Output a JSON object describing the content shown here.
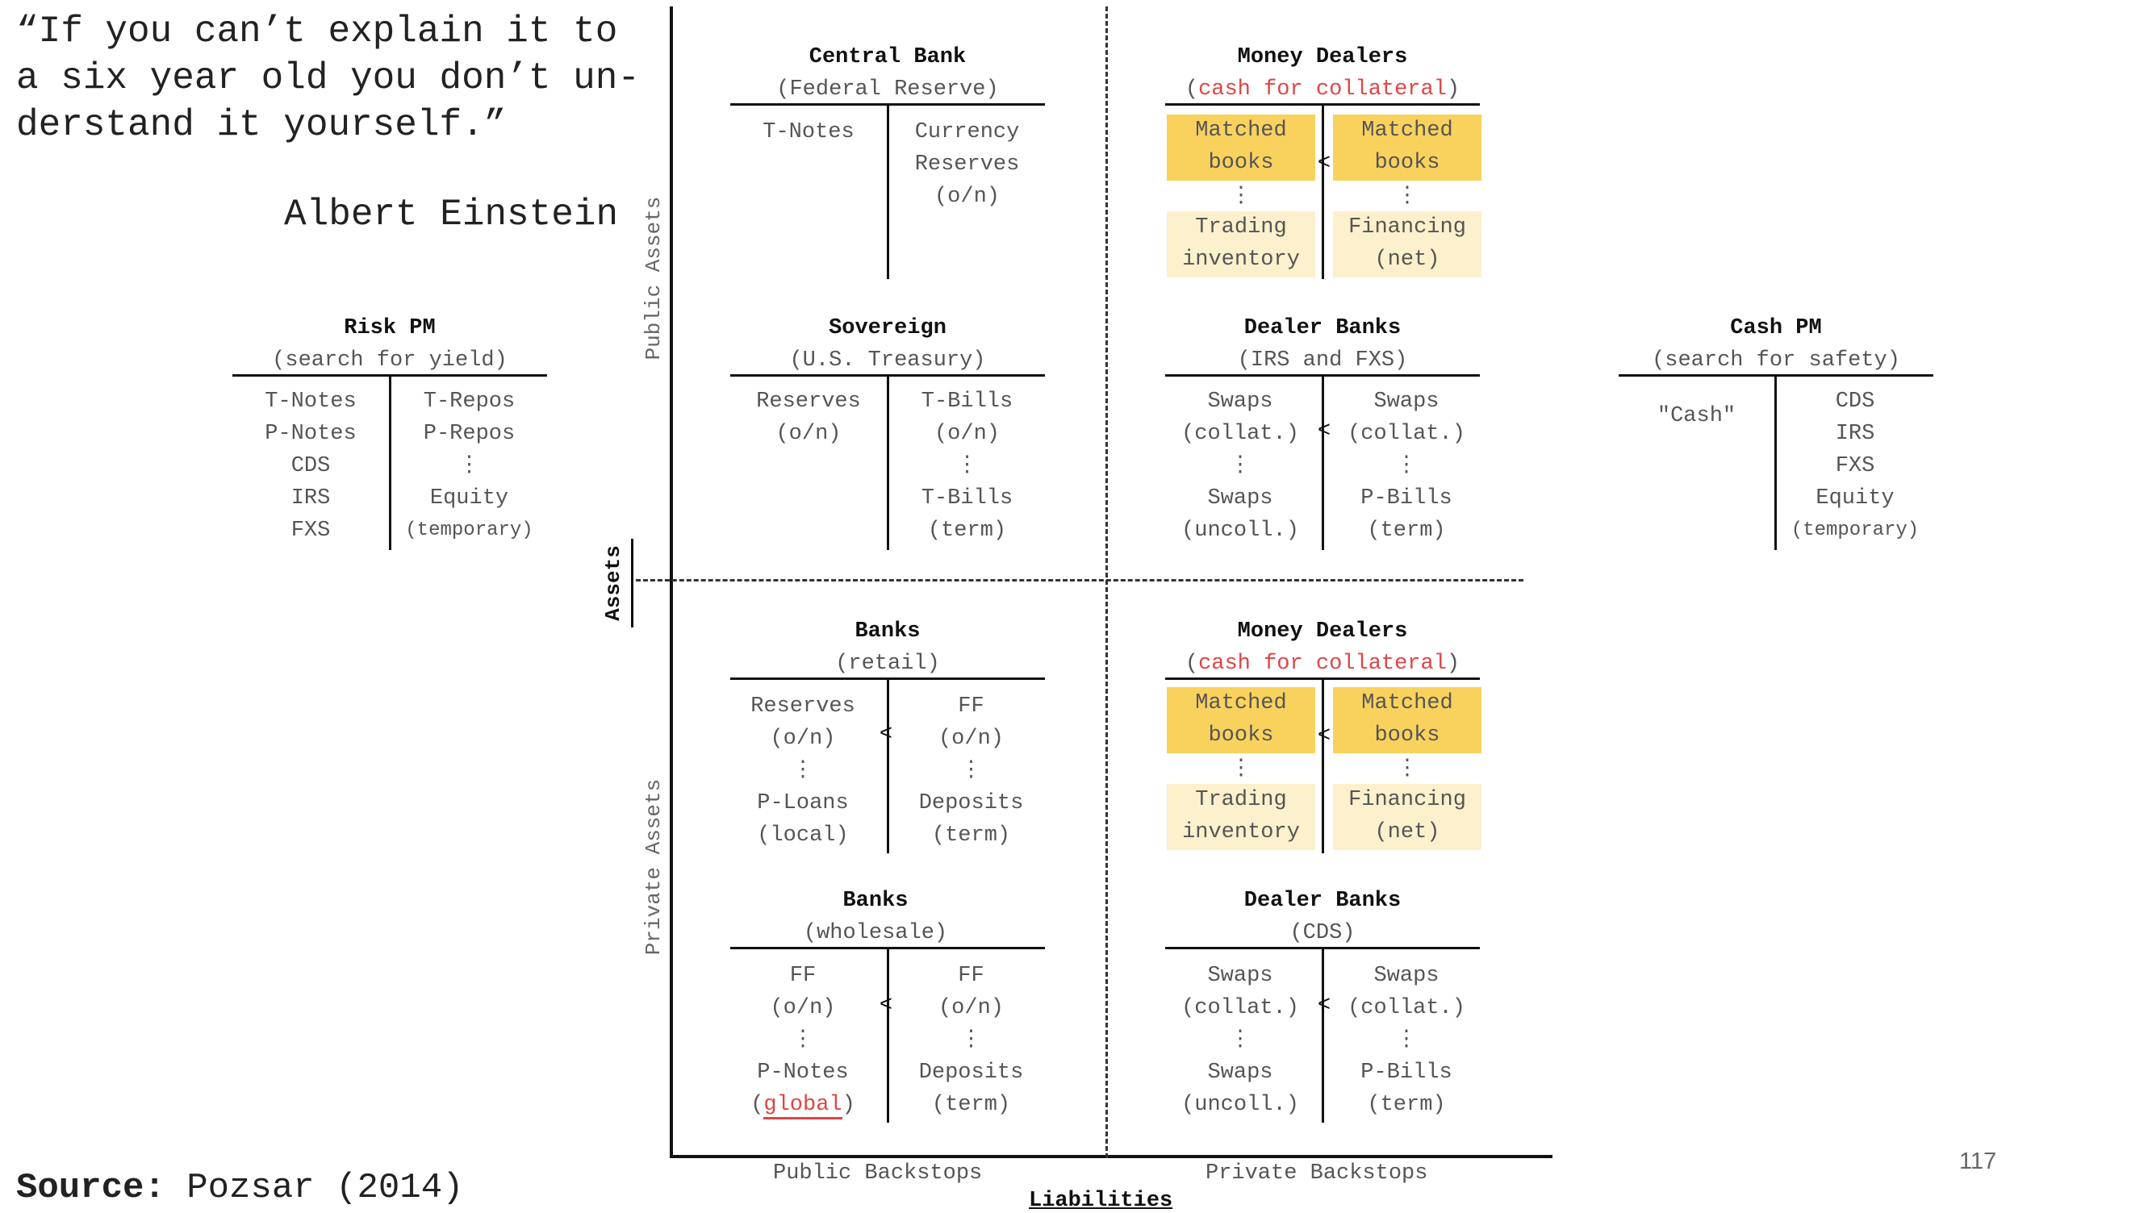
{
  "quote": {
    "text": "“If you can’t explain it to\na six year old you don’t un-\nderstand it yourself.”",
    "author": "Albert Einstein"
  },
  "source": {
    "label": "Source:",
    "value": "Pozsar (2014)"
  },
  "page_number": "117",
  "axes": {
    "public_assets": "Public Assets",
    "private_assets": "Private Assets",
    "assets": "Assets",
    "public_backstops": "Public Backstops",
    "private_backstops": "Private Backstops",
    "liabilities": "Liabilities"
  },
  "risk_pm": {
    "title": "Risk PM",
    "subtitle": "(search for yield)",
    "left": "T-Notes\nP-Notes\nCDS\nIRS\nFXS",
    "right_top": "T-Repos\nP-Repos",
    "dots": "⋮",
    "right_bottom": "Equity",
    "right_note": "(temporary)"
  },
  "cash_pm": {
    "title": "Cash PM",
    "subtitle": "(search for safety)",
    "left": "\"Cash\"",
    "right": "CDS\nIRS\nFXS\nEquity",
    "right_note": "(temporary)"
  },
  "central_bank": {
    "title": "Central Bank",
    "subtitle": "(Federal Reserve)",
    "left": "T-Notes",
    "right": "Currency\nReserves\n(o/n)"
  },
  "sovereign": {
    "title": "Sovereign",
    "subtitle": "(U.S. Treasury)",
    "left": "Reserves\n(o/n)",
    "right_top": "T-Bills\n(o/n)",
    "dots": "⋮",
    "right_bottom": "T-Bills\n(term)"
  },
  "money_dealers_top": {
    "title": "Money Dealers",
    "subtitle_red": "cash for collateral",
    "left_top": "Matched\nbooks",
    "right_top": "Matched\nbooks",
    "lt": "<",
    "dots": "⋮",
    "left_bottom": "Trading\ninventory",
    "right_bottom": "Financing\n(net)"
  },
  "dealer_banks_top": {
    "title": "Dealer Banks",
    "subtitle": "(IRS and FXS)",
    "left_top": "Swaps\n(collat.)",
    "right_top": "Swaps\n(collat.)",
    "lt": "<",
    "dots": "⋮",
    "left_bottom": "Swaps\n(uncoll.)",
    "right_bottom": "P-Bills\n(term)"
  },
  "banks_retail": {
    "title": "Banks",
    "subtitle": "(retail)",
    "left_top": "Reserves\n(o/n)",
    "right_top": "FF\n(o/n)",
    "lt": "<",
    "dots": "⋮",
    "left_bottom": "P-Loans\n(local)",
    "right_bottom": "Deposits\n(term)"
  },
  "money_dealers_bottom": {
    "title": "Money Dealers",
    "subtitle_red": "cash for collateral",
    "left_top": "Matched\nbooks",
    "right_top": "Matched\nbooks",
    "lt": "<",
    "dots": "⋮",
    "left_bottom": "Trading\ninventory",
    "right_bottom": "Financing\n(net)"
  },
  "banks_wholesale": {
    "title": "Banks",
    "subtitle": "(wholesale)",
    "left_top": "FF\n(o/n)",
    "right_top": "FF\n(o/n)",
    "lt": "<",
    "dots": "⋮",
    "left_bottom": "P-Notes",
    "left_bottom_red": "global",
    "right_bottom": "Deposits\n(term)"
  },
  "dealer_banks_bottom": {
    "title": "Dealer Banks",
    "subtitle": "(CDS)",
    "left_top": "Swaps\n(collat.)",
    "right_top": "Swaps\n(collat.)",
    "lt": "<",
    "dots": "⋮",
    "left_bottom": "Swaps\n(uncoll.)",
    "right_bottom": "P-Bills\n(term)"
  },
  "colors": {
    "highlight": "#f9d25e",
    "highlight_pale": "#fdf0cc",
    "red": "#e04545"
  }
}
